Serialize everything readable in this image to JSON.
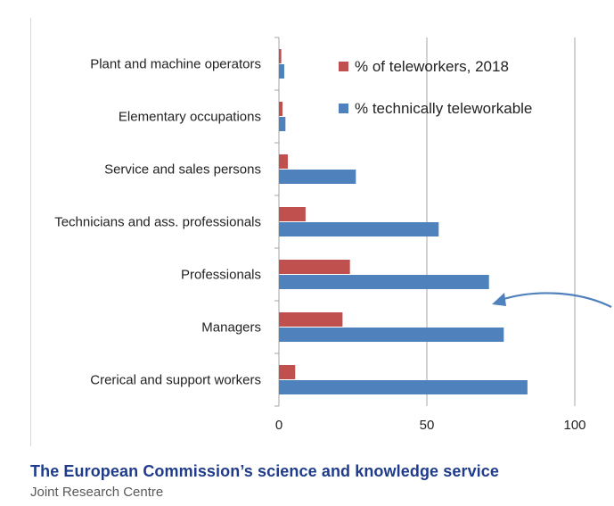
{
  "colors": {
    "teleworkers": "#c0504d",
    "teleworkable": "#4f81bd",
    "grid": "#a6a6a6",
    "arrow": "#4f81bd",
    "footer_title": "#1f3b8c",
    "footer_sub": "#595959"
  },
  "footer": {
    "title": "The European Commission’s science and knowledge service",
    "subtitle": "Joint Research Centre"
  },
  "chart_data": {
    "type": "bar",
    "orientation": "horizontal",
    "title": "",
    "xlabel": "",
    "ylabel": "",
    "xlim": [
      0,
      100
    ],
    "xticks": [
      0,
      50,
      100
    ],
    "grid": true,
    "legend_position": "top-right",
    "categories": [
      "Plant and machine operators",
      "Elementary occupations",
      "Service and sales persons",
      "Technicians and ass. professionals",
      "Professionals",
      "Managers",
      "Crerical and support workers"
    ],
    "series": [
      {
        "name": "% of teleworkers, 2018",
        "color": "#c0504d",
        "values": [
          0.8,
          1.2,
          3,
          9,
          24,
          21.5,
          5.5
        ]
      },
      {
        "name": "% technically teleworkable",
        "color": "#4f81bd",
        "values": [
          1.8,
          2.2,
          26,
          54,
          71,
          76,
          84
        ]
      }
    ]
  }
}
